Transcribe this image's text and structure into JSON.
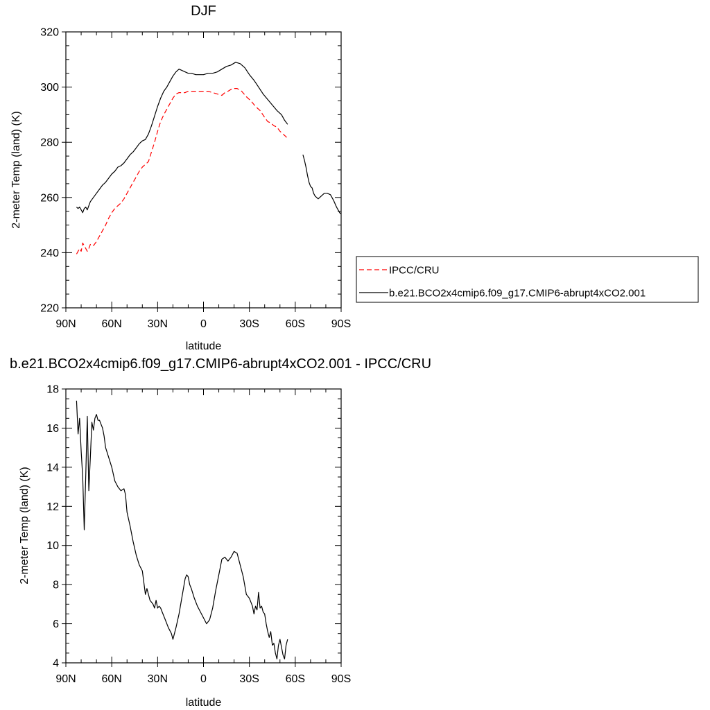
{
  "chart_data": [
    {
      "type": "line",
      "title": "DJF",
      "xlabel": "latitude",
      "ylabel": "2-meter Temp (land) (K)",
      "xlim": [
        90,
        -90
      ],
      "ylim": [
        220,
        320
      ],
      "x_ticks": [
        90,
        60,
        30,
        0,
        -30,
        -60,
        -90
      ],
      "x_tick_labels": [
        "90N",
        "60N",
        "30N",
        "0",
        "30S",
        "60S",
        "90S"
      ],
      "y_ticks": [
        220,
        240,
        260,
        280,
        300,
        320
      ],
      "y_tick_labels": [
        "220",
        "240",
        "260",
        "280",
        "300",
        "320"
      ],
      "legend_position": "right",
      "series": [
        {
          "name": "IPCC/CRU",
          "color": "#ff0000",
          "dash": "dashed",
          "x": [
            83,
            82,
            81,
            80,
            79,
            78,
            77,
            76,
            75,
            74,
            72,
            70,
            68,
            66,
            64,
            62,
            60,
            58,
            56,
            54,
            52,
            50,
            48,
            46,
            44,
            42,
            40,
            38,
            36,
            34,
            32,
            30,
            28,
            26,
            24,
            22,
            20,
            18,
            16,
            14,
            12,
            10,
            8,
            5,
            2,
            0,
            -3,
            -6,
            -9,
            -12,
            -14,
            -16,
            -19,
            -22,
            -25,
            -28,
            -31,
            -34,
            -37,
            -40,
            -42,
            -44,
            -46,
            -48,
            -50,
            -52,
            -54,
            -55
          ],
          "y": [
            239.5,
            240.5,
            241.5,
            240.5,
            243.5,
            242.5,
            241.5,
            240.5,
            241.5,
            243,
            242.5,
            244,
            246,
            248,
            250,
            252.5,
            254.5,
            256,
            257,
            258,
            259.5,
            261.5,
            263.5,
            265.5,
            267.5,
            269.5,
            271,
            272,
            273,
            276.5,
            280,
            284,
            287.5,
            290,
            292,
            294,
            296,
            297.5,
            298,
            298,
            298,
            298.5,
            298.5,
            298.5,
            298.5,
            298.5,
            298.5,
            298,
            297.5,
            297,
            298,
            298.5,
            299.5,
            299.5,
            298.5,
            296.5,
            295,
            293,
            291.5,
            289,
            287.5,
            287,
            286,
            285.5,
            284,
            283,
            282,
            281
          ]
        },
        {
          "name": "b.e21.BCO2x4cmip6.f09_g17.CMIP6-abrupt4xCO2.001",
          "color": "#000000",
          "dash": "solid",
          "segments": [
            {
              "x": [
                83,
                82,
                81,
                80,
                79,
                78,
                77,
                76,
                75,
                74,
                72,
                70,
                68,
                66,
                64,
                62,
                60,
                58,
                56,
                54,
                52,
                50,
                48,
                46,
                44,
                42,
                40,
                38,
                36,
                34,
                32,
                30,
                28,
                26,
                24,
                22,
                20,
                18,
                16,
                14,
                12,
                10,
                8,
                5,
                2,
                0,
                -3,
                -6,
                -9,
                -12,
                -15,
                -18,
                -21,
                -24,
                -27,
                -30,
                -33,
                -36,
                -39,
                -42,
                -45,
                -48,
                -51,
                -53,
                -55
              ],
              "y": [
                256.5,
                256,
                256.5,
                255.5,
                254.5,
                256,
                256.5,
                255.5,
                257,
                258.5,
                260,
                261.5,
                263,
                264.5,
                265.5,
                267,
                268.5,
                269.5,
                271,
                271.5,
                272.5,
                274,
                275.5,
                276.5,
                278,
                279.5,
                280.5,
                281,
                283,
                286,
                289.5,
                293,
                296,
                298.5,
                300,
                302,
                304,
                305.5,
                306.5,
                306,
                305.5,
                305,
                305,
                304.5,
                304.5,
                304.5,
                305,
                305,
                305.5,
                306.5,
                307.5,
                308,
                309,
                308.5,
                307,
                304.5,
                302.5,
                300,
                297.5,
                295.5,
                293.5,
                291.5,
                290,
                288,
                286.5
              ]
            },
            {
              "x": [
                -65,
                -66,
                -67,
                -68,
                -69,
                -70,
                -71,
                -72,
                -73,
                -74,
                -75,
                -77,
                -79,
                -81,
                -83,
                -85,
                -87,
                -89,
                -90
              ],
              "y": [
                275.5,
                273.5,
                271,
                268,
                265.5,
                264,
                263.5,
                261.5,
                260.5,
                260,
                259.5,
                260.5,
                261.5,
                261.5,
                261,
                259,
                256.5,
                254.5,
                254
              ]
            }
          ]
        }
      ]
    },
    {
      "type": "line",
      "title": "b.e21.BCO2x4cmip6.f09_g17.CMIP6-abrupt4xCO2.001 - IPCC/CRU",
      "xlabel": "latitude",
      "ylabel": "2-meter Temp (land) (K)",
      "xlim": [
        90,
        -90
      ],
      "ylim": [
        4,
        18
      ],
      "x_ticks": [
        90,
        60,
        30,
        0,
        -30,
        -60,
        -90
      ],
      "x_tick_labels": [
        "90N",
        "60N",
        "30N",
        "0",
        "30S",
        "60S",
        "90S"
      ],
      "y_ticks": [
        4,
        6,
        8,
        10,
        12,
        14,
        16,
        18
      ],
      "y_tick_labels": [
        "4",
        "6",
        "8",
        "10",
        "12",
        "14",
        "16",
        "18"
      ],
      "series": [
        {
          "color": "#000000",
          "dash": "solid",
          "x": [
            83,
            82,
            81,
            80,
            79,
            78,
            77,
            76,
            75,
            74,
            73,
            72,
            71,
            70,
            69,
            68,
            67,
            66,
            65,
            64,
            62,
            60,
            58,
            56,
            54,
            52,
            51,
            50,
            48,
            46,
            44,
            42,
            40,
            38,
            37,
            36,
            35,
            34,
            33,
            32,
            31,
            30,
            29,
            28,
            27,
            25,
            23,
            21,
            20,
            18,
            16,
            14,
            12,
            11,
            10,
            9,
            8,
            6,
            4,
            2,
            0,
            -2,
            -4,
            -6,
            -8,
            -10,
            -12,
            -14,
            -16,
            -18,
            -20,
            -22,
            -24,
            -26,
            -28,
            -30,
            -32,
            -33,
            -34,
            -35,
            -36,
            -37,
            -38,
            -39,
            -40,
            -41,
            -42,
            -43,
            -44,
            -45,
            -46,
            -47,
            -48,
            -49,
            -50,
            -51,
            -52,
            -53,
            -54,
            -55
          ],
          "y": [
            17.4,
            15.7,
            16.5,
            14.8,
            13.5,
            10.8,
            13.6,
            16.6,
            12.8,
            14.5,
            16.3,
            15.9,
            16.5,
            16.7,
            16.4,
            16.4,
            16.2,
            16.0,
            15.6,
            15.0,
            14.5,
            14.0,
            13.3,
            13.0,
            12.8,
            12.9,
            12.6,
            11.7,
            11.0,
            10.2,
            9.5,
            9.0,
            8.7,
            7.5,
            7.8,
            7.5,
            7.2,
            7.1,
            7.0,
            6.8,
            7.2,
            6.8,
            6.9,
            6.8,
            6.6,
            6.2,
            5.8,
            5.5,
            5.2,
            5.8,
            6.5,
            7.4,
            8.3,
            8.5,
            8.4,
            8.0,
            7.8,
            7.3,
            6.9,
            6.6,
            6.3,
            6.0,
            6.2,
            6.8,
            7.7,
            8.5,
            9.3,
            9.4,
            9.2,
            9.4,
            9.7,
            9.6,
            9.0,
            8.4,
            7.5,
            7.3,
            6.9,
            6.5,
            6.9,
            6.7,
            7.6,
            6.8,
            6.9,
            6.6,
            6.5,
            6.0,
            5.6,
            5.3,
            5.6,
            4.9,
            5.0,
            4.5,
            4.2,
            4.9,
            5.2,
            4.8,
            4.4,
            4.2,
            4.9,
            5.2
          ]
        }
      ]
    }
  ]
}
